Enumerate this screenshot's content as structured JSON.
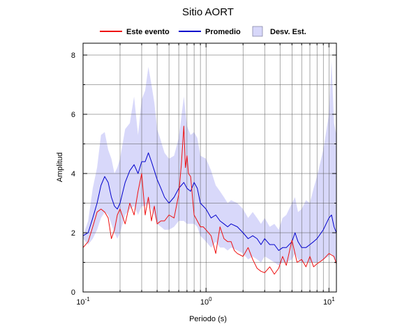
{
  "chart_data": {
    "type": "line",
    "title": "Sitio AORT",
    "xlabel": "Periodo (s)",
    "ylabel": "Amplitud",
    "x_scale": "log",
    "xlim": [
      0.1,
      11.5
    ],
    "ylim": [
      0,
      8.4
    ],
    "grid": true,
    "legend_position": "top",
    "x_ticks": [
      {
        "base": "10",
        "exp": "-1"
      },
      {
        "base": "10",
        "exp": "0"
      },
      {
        "base": "10",
        "exp": "1"
      }
    ],
    "y_ticks": [
      "0",
      "2",
      "4",
      "6",
      "8"
    ],
    "legend": [
      "Este evento",
      "Promedio",
      "Desv. Est."
    ],
    "colors": {
      "este_evento": "#ee1111",
      "promedio": "#0000cc",
      "band": "#d8d8fa"
    },
    "series": [
      {
        "name": "Este evento",
        "x": [
          0.1,
          0.11,
          0.12,
          0.13,
          0.14,
          0.15,
          0.16,
          0.17,
          0.18,
          0.19,
          0.2,
          0.22,
          0.24,
          0.26,
          0.28,
          0.3,
          0.32,
          0.34,
          0.36,
          0.38,
          0.4,
          0.43,
          0.46,
          0.5,
          0.55,
          0.6,
          0.63,
          0.66,
          0.68,
          0.7,
          0.72,
          0.75,
          0.8,
          0.85,
          0.9,
          0.95,
          1.0,
          1.1,
          1.2,
          1.3,
          1.4,
          1.5,
          1.6,
          1.7,
          1.8,
          2.0,
          2.2,
          2.4,
          2.6,
          2.8,
          3.0,
          3.3,
          3.6,
          3.9,
          4.2,
          4.5,
          5.0,
          5.5,
          6.0,
          6.5,
          7.0,
          7.5,
          8.0,
          9.0,
          10.0,
          11.0,
          11.5
        ],
        "values": [
          1.5,
          1.7,
          2.2,
          2.7,
          2.8,
          2.7,
          2.5,
          1.8,
          2.1,
          2.6,
          2.8,
          2.3,
          3.0,
          2.6,
          3.4,
          4.0,
          2.6,
          3.2,
          2.4,
          2.9,
          2.3,
          2.4,
          2.4,
          2.6,
          2.5,
          3.3,
          4.3,
          5.6,
          4.2,
          4.6,
          4.0,
          3.9,
          2.6,
          2.4,
          2.2,
          2.2,
          2.1,
          1.9,
          1.3,
          2.2,
          1.8,
          1.7,
          1.7,
          1.4,
          1.3,
          1.2,
          1.5,
          1.1,
          0.8,
          0.7,
          0.65,
          0.85,
          0.6,
          0.8,
          1.2,
          0.9,
          1.75,
          1.0,
          1.1,
          0.85,
          1.2,
          0.85,
          0.95,
          1.1,
          1.3,
          1.2,
          0.95
        ]
      },
      {
        "name": "Promedio",
        "x": [
          0.1,
          0.11,
          0.12,
          0.13,
          0.14,
          0.15,
          0.16,
          0.17,
          0.18,
          0.19,
          0.2,
          0.22,
          0.24,
          0.26,
          0.28,
          0.3,
          0.32,
          0.34,
          0.36,
          0.38,
          0.4,
          0.43,
          0.46,
          0.5,
          0.55,
          0.6,
          0.63,
          0.66,
          0.7,
          0.75,
          0.8,
          0.85,
          0.9,
          1.0,
          1.1,
          1.2,
          1.3,
          1.4,
          1.5,
          1.6,
          1.8,
          2.0,
          2.2,
          2.4,
          2.6,
          2.8,
          3.0,
          3.3,
          3.6,
          3.9,
          4.2,
          4.5,
          5.0,
          5.3,
          5.6,
          6.0,
          6.5,
          7.0,
          7.5,
          8.0,
          9.0,
          10.0,
          10.5,
          11.0,
          11.5
        ],
        "values": [
          1.9,
          2.0,
          2.5,
          3.0,
          3.6,
          3.9,
          3.7,
          3.2,
          2.9,
          2.8,
          3.0,
          3.7,
          4.1,
          4.3,
          4.0,
          4.4,
          4.4,
          4.7,
          4.4,
          4.1,
          3.8,
          3.5,
          3.2,
          3.0,
          3.2,
          3.5,
          3.6,
          3.7,
          3.5,
          3.4,
          3.7,
          3.5,
          3.0,
          2.8,
          2.5,
          2.6,
          2.4,
          2.3,
          2.2,
          2.3,
          2.2,
          2.0,
          1.8,
          1.9,
          1.8,
          1.6,
          1.8,
          1.6,
          1.6,
          1.4,
          1.5,
          1.5,
          1.7,
          2.0,
          1.7,
          1.5,
          1.5,
          1.6,
          1.7,
          1.8,
          2.1,
          2.5,
          2.6,
          2.2,
          2.0
        ]
      },
      {
        "name": "Desv. Est.",
        "x": [
          0.1,
          0.11,
          0.12,
          0.13,
          0.14,
          0.15,
          0.16,
          0.17,
          0.18,
          0.19,
          0.2,
          0.22,
          0.24,
          0.26,
          0.28,
          0.3,
          0.32,
          0.34,
          0.36,
          0.38,
          0.4,
          0.43,
          0.46,
          0.5,
          0.55,
          0.6,
          0.63,
          0.66,
          0.7,
          0.75,
          0.8,
          0.85,
          0.9,
          1.0,
          1.1,
          1.2,
          1.3,
          1.4,
          1.5,
          1.6,
          1.8,
          2.0,
          2.2,
          2.4,
          2.6,
          2.8,
          3.0,
          3.3,
          3.6,
          3.9,
          4.2,
          4.5,
          5.0,
          5.3,
          5.6,
          6.0,
          6.5,
          7.0,
          7.5,
          8.0,
          9.0,
          10.0,
          10.5,
          11.0,
          11.5
        ],
        "lower": [
          1.8,
          1.6,
          1.8,
          2.1,
          2.5,
          2.7,
          2.6,
          2.3,
          2.0,
          1.8,
          2.0,
          2.6,
          2.8,
          2.9,
          2.6,
          2.9,
          2.9,
          3.0,
          2.8,
          2.6,
          2.3,
          2.2,
          2.1,
          2.1,
          2.2,
          2.4,
          2.4,
          2.4,
          2.3,
          2.3,
          2.3,
          2.2,
          1.9,
          1.7,
          1.5,
          1.7,
          1.5,
          1.5,
          1.4,
          1.5,
          1.4,
          1.3,
          1.1,
          1.2,
          1.1,
          1.0,
          1.2,
          1.1,
          1.0,
          0.9,
          1.0,
          1.0,
          1.1,
          1.3,
          1.1,
          1.0,
          1.0,
          1.0,
          1.0,
          1.0,
          1.1,
          1.2,
          1.3,
          1.1,
          1.0
        ],
        "upper": [
          1.9,
          2.4,
          3.5,
          4.2,
          5.3,
          5.4,
          4.8,
          4.5,
          4.0,
          4.2,
          4.5,
          5.5,
          5.7,
          6.6,
          5.3,
          6.5,
          6.8,
          7.6,
          7.0,
          6.4,
          5.5,
          5.1,
          4.7,
          4.5,
          4.6,
          5.2,
          5.9,
          6.6,
          5.6,
          5.3,
          5.4,
          5.2,
          4.6,
          4.5,
          4.1,
          3.6,
          3.4,
          3.2,
          3.0,
          3.1,
          3.0,
          2.8,
          2.5,
          2.7,
          2.5,
          2.3,
          2.5,
          2.2,
          2.3,
          2.1,
          2.5,
          2.6,
          3.0,
          3.2,
          2.7,
          2.8,
          3.1,
          3.0,
          3.5,
          3.9,
          4.8,
          6.0,
          7.8,
          5.7,
          5.3
        ]
      }
    ]
  }
}
